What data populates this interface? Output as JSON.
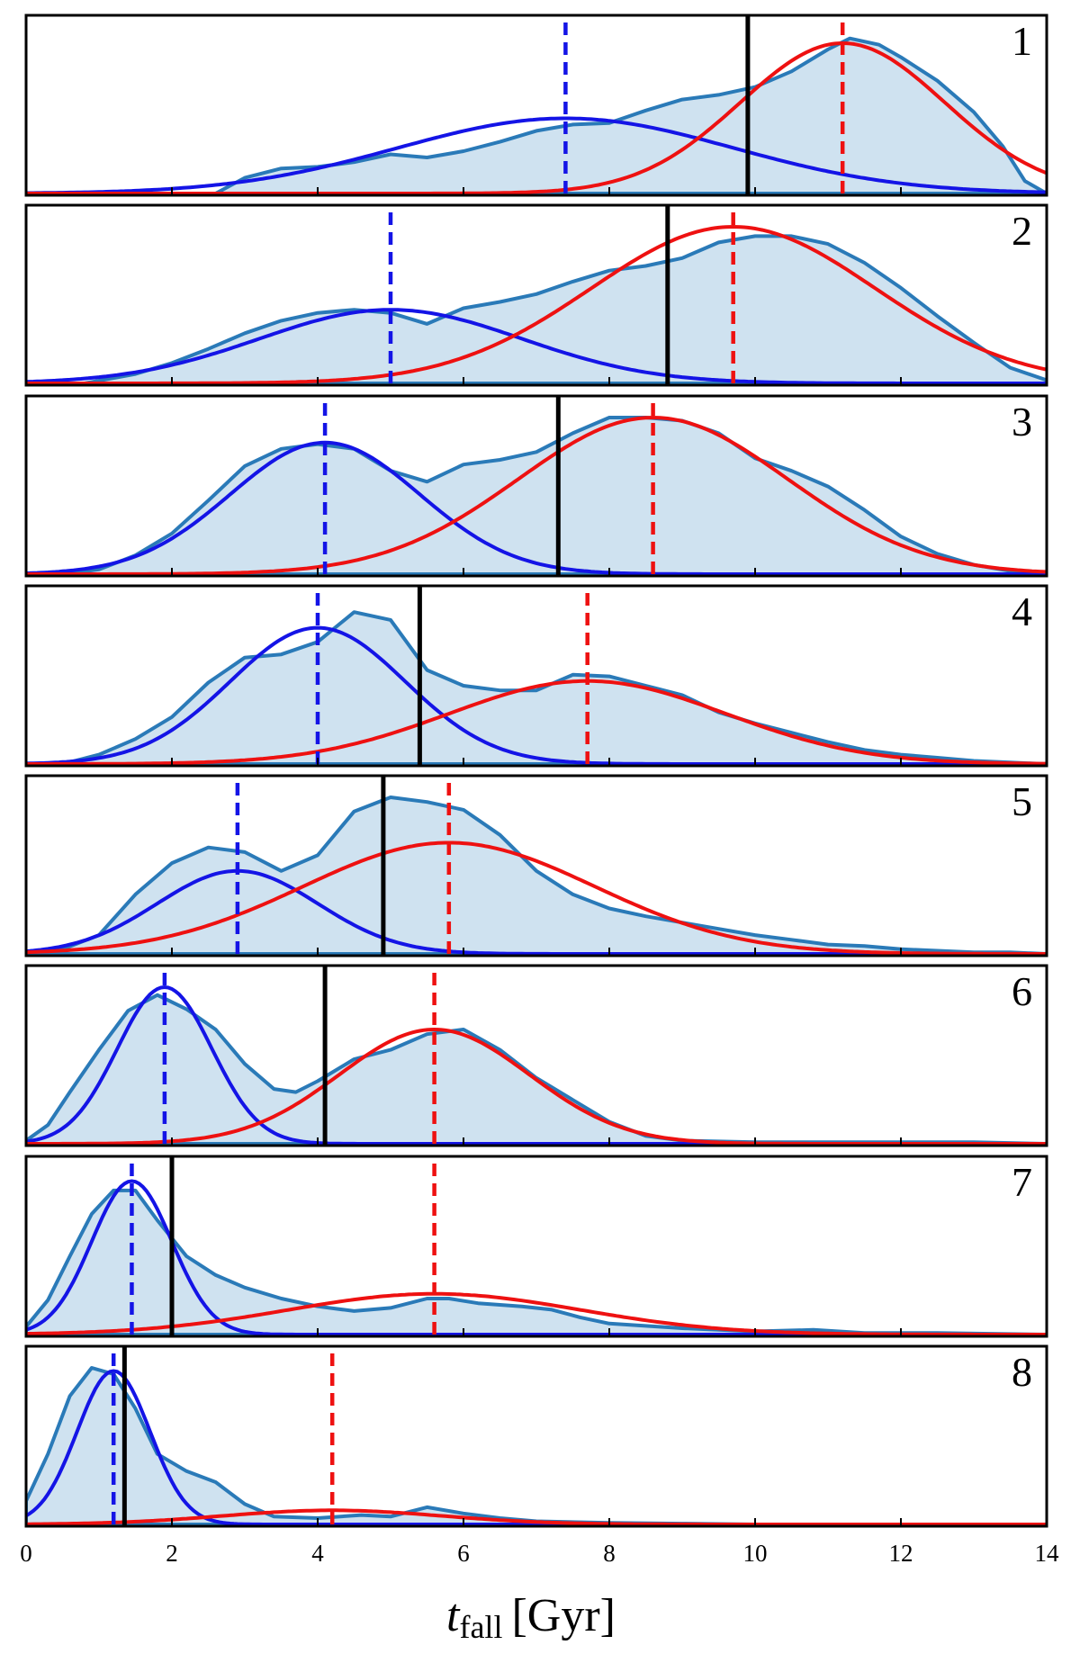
{
  "chart_data": {
    "type": "area",
    "xlabel": "t",
    "xlabel_sub": "fall",
    "xlabel_unit": "[Gyr]",
    "xlim": [
      0,
      14
    ],
    "xticks": [
      0,
      2,
      4,
      6,
      8,
      10,
      12,
      14
    ],
    "colors": {
      "kde_fill": "#cfe2f0",
      "kde_line": "#2a7ab8",
      "blue": "#1414e6",
      "red": "#ee1111",
      "black": "#000000"
    },
    "panels": [
      {
        "label": "1",
        "black_line": 9.9,
        "blue": {
          "mu": 7.4,
          "sigma": 2.3,
          "amp": 0.48
        },
        "red": {
          "mu": 11.2,
          "sigma": 1.4,
          "amp": 0.96
        },
        "kde": [
          [
            2.6,
            0
          ],
          [
            3.0,
            0.1
          ],
          [
            3.5,
            0.16
          ],
          [
            4.0,
            0.17
          ],
          [
            4.5,
            0.2
          ],
          [
            5.0,
            0.25
          ],
          [
            5.5,
            0.23
          ],
          [
            6.0,
            0.27
          ],
          [
            6.5,
            0.33
          ],
          [
            7.0,
            0.4
          ],
          [
            7.5,
            0.44
          ],
          [
            8.0,
            0.45
          ],
          [
            8.5,
            0.53
          ],
          [
            9.0,
            0.6
          ],
          [
            9.5,
            0.63
          ],
          [
            10.0,
            0.68
          ],
          [
            10.5,
            0.78
          ],
          [
            11.0,
            0.92
          ],
          [
            11.3,
            0.99
          ],
          [
            11.7,
            0.95
          ],
          [
            12.0,
            0.87
          ],
          [
            12.5,
            0.72
          ],
          [
            13.0,
            0.52
          ],
          [
            13.4,
            0.3
          ],
          [
            13.7,
            0.08
          ],
          [
            14,
            0
          ]
        ]
      },
      {
        "label": "2",
        "black_line": 8.8,
        "blue": {
          "mu": 5.0,
          "sigma": 1.8,
          "amp": 0.47
        },
        "red": {
          "mu": 9.7,
          "sigma": 1.95,
          "amp": 1.0
        },
        "kde": [
          [
            0.8,
            0
          ],
          [
            1.5,
            0.06
          ],
          [
            2.0,
            0.13
          ],
          [
            2.5,
            0.22
          ],
          [
            3.0,
            0.32
          ],
          [
            3.5,
            0.4
          ],
          [
            4.0,
            0.45
          ],
          [
            4.5,
            0.47
          ],
          [
            5.0,
            0.45
          ],
          [
            5.5,
            0.38
          ],
          [
            6.0,
            0.48
          ],
          [
            6.5,
            0.52
          ],
          [
            7.0,
            0.57
          ],
          [
            7.5,
            0.65
          ],
          [
            8.0,
            0.72
          ],
          [
            8.5,
            0.75
          ],
          [
            9.0,
            0.8
          ],
          [
            9.5,
            0.9
          ],
          [
            10.0,
            0.94
          ],
          [
            10.5,
            0.94
          ],
          [
            11.0,
            0.89
          ],
          [
            11.5,
            0.77
          ],
          [
            12.0,
            0.61
          ],
          [
            12.5,
            0.43
          ],
          [
            13.0,
            0.26
          ],
          [
            13.5,
            0.1
          ],
          [
            14.0,
            0.02
          ]
        ]
      },
      {
        "label": "3",
        "black_line": 7.3,
        "blue": {
          "mu": 4.1,
          "sigma": 1.3,
          "amp": 0.84
        },
        "red": {
          "mu": 8.6,
          "sigma": 1.85,
          "amp": 1.0
        },
        "kde": [
          [
            0.5,
            0
          ],
          [
            1.0,
            0.03
          ],
          [
            1.5,
            0.12
          ],
          [
            2.0,
            0.26
          ],
          [
            2.5,
            0.47
          ],
          [
            3.0,
            0.69
          ],
          [
            3.5,
            0.8
          ],
          [
            4.0,
            0.83
          ],
          [
            4.5,
            0.8
          ],
          [
            5.0,
            0.66
          ],
          [
            5.5,
            0.59
          ],
          [
            6.0,
            0.7
          ],
          [
            6.5,
            0.73
          ],
          [
            7.0,
            0.78
          ],
          [
            7.5,
            0.9
          ],
          [
            8.0,
            1.0
          ],
          [
            8.5,
            1.0
          ],
          [
            9.0,
            0.98
          ],
          [
            9.5,
            0.9
          ],
          [
            10.0,
            0.74
          ],
          [
            10.5,
            0.66
          ],
          [
            11.0,
            0.56
          ],
          [
            11.5,
            0.41
          ],
          [
            12.0,
            0.24
          ],
          [
            12.5,
            0.13
          ],
          [
            13.0,
            0.06
          ],
          [
            13.5,
            0.02
          ],
          [
            14.0,
            0
          ]
        ]
      },
      {
        "label": "4",
        "black_line": 5.4,
        "blue": {
          "mu": 4.0,
          "sigma": 1.2,
          "amp": 0.87
        },
        "red": {
          "mu": 7.7,
          "sigma": 1.9,
          "amp": 0.53
        },
        "kde": [
          [
            0.5,
            0
          ],
          [
            1.0,
            0.06
          ],
          [
            1.5,
            0.16
          ],
          [
            2.0,
            0.3
          ],
          [
            2.5,
            0.52
          ],
          [
            3.0,
            0.68
          ],
          [
            3.5,
            0.7
          ],
          [
            4.0,
            0.78
          ],
          [
            4.5,
            0.97
          ],
          [
            5.0,
            0.92
          ],
          [
            5.5,
            0.6
          ],
          [
            6.0,
            0.5
          ],
          [
            6.5,
            0.47
          ],
          [
            7.0,
            0.47
          ],
          [
            7.5,
            0.57
          ],
          [
            8.0,
            0.56
          ],
          [
            8.5,
            0.5
          ],
          [
            9.0,
            0.44
          ],
          [
            9.5,
            0.33
          ],
          [
            10.0,
            0.26
          ],
          [
            10.5,
            0.2
          ],
          [
            11.0,
            0.14
          ],
          [
            11.5,
            0.09
          ],
          [
            12.0,
            0.06
          ],
          [
            12.5,
            0.04
          ],
          [
            13.0,
            0.02
          ],
          [
            13.5,
            0.01
          ],
          [
            14.0,
            0
          ]
        ]
      },
      {
        "label": "5",
        "black_line": 4.9,
        "blue": {
          "mu": 2.9,
          "sigma": 1.1,
          "amp": 0.53
        },
        "red": {
          "mu": 5.8,
          "sigma": 2.0,
          "amp": 0.71
        },
        "kde": [
          [
            0.0,
            0
          ],
          [
            0.5,
            0.03
          ],
          [
            1.0,
            0.12
          ],
          [
            1.5,
            0.38
          ],
          [
            2.0,
            0.58
          ],
          [
            2.5,
            0.68
          ],
          [
            3.0,
            0.65
          ],
          [
            3.5,
            0.53
          ],
          [
            4.0,
            0.63
          ],
          [
            4.5,
            0.91
          ],
          [
            5.0,
            1.0
          ],
          [
            5.5,
            0.97
          ],
          [
            6.0,
            0.92
          ],
          [
            6.5,
            0.76
          ],
          [
            7.0,
            0.53
          ],
          [
            7.5,
            0.38
          ],
          [
            8.0,
            0.29
          ],
          [
            8.5,
            0.24
          ],
          [
            9.0,
            0.2
          ],
          [
            9.5,
            0.16
          ],
          [
            10.0,
            0.12
          ],
          [
            10.5,
            0.09
          ],
          [
            11.0,
            0.06
          ],
          [
            11.5,
            0.05
          ],
          [
            12.0,
            0.03
          ],
          [
            12.5,
            0.02
          ],
          [
            13.0,
            0.01
          ],
          [
            13.5,
            0.01
          ],
          [
            14.0,
            0
          ]
        ]
      },
      {
        "label": "6",
        "black_line": 4.1,
        "blue": {
          "mu": 1.9,
          "sigma": 0.65,
          "amp": 1.0
        },
        "red": {
          "mu": 5.6,
          "sigma": 1.3,
          "amp": 0.73
        },
        "kde": [
          [
            0.0,
            0.02
          ],
          [
            0.3,
            0.12
          ],
          [
            0.6,
            0.33
          ],
          [
            1.0,
            0.6
          ],
          [
            1.4,
            0.85
          ],
          [
            1.8,
            0.95
          ],
          [
            2.2,
            0.86
          ],
          [
            2.6,
            0.73
          ],
          [
            3.0,
            0.51
          ],
          [
            3.4,
            0.35
          ],
          [
            3.7,
            0.33
          ],
          [
            4.0,
            0.4
          ],
          [
            4.5,
            0.54
          ],
          [
            5.0,
            0.6
          ],
          [
            5.5,
            0.7
          ],
          [
            6.0,
            0.73
          ],
          [
            6.5,
            0.6
          ],
          [
            7.0,
            0.42
          ],
          [
            7.5,
            0.28
          ],
          [
            8.0,
            0.14
          ],
          [
            8.5,
            0.05
          ],
          [
            9.0,
            0.02
          ],
          [
            10.0,
            0.01
          ],
          [
            11.0,
            0.01
          ],
          [
            12.0,
            0.01
          ],
          [
            13.0,
            0.01
          ],
          [
            14.0,
            0
          ]
        ]
      },
      {
        "label": "7",
        "black_line": 2.0,
        "blue": {
          "mu": 1.45,
          "sigma": 0.55,
          "amp": 0.98
        },
        "red": {
          "mu": 5.6,
          "sigma": 2.0,
          "amp": 0.26
        },
        "kde": [
          [
            0.0,
            0.05
          ],
          [
            0.3,
            0.22
          ],
          [
            0.6,
            0.5
          ],
          [
            0.9,
            0.77
          ],
          [
            1.2,
            0.92
          ],
          [
            1.5,
            0.92
          ],
          [
            1.8,
            0.73
          ],
          [
            2.2,
            0.5
          ],
          [
            2.6,
            0.38
          ],
          [
            3.0,
            0.3
          ],
          [
            3.5,
            0.23
          ],
          [
            4.0,
            0.18
          ],
          [
            4.5,
            0.15
          ],
          [
            5.0,
            0.17
          ],
          [
            5.5,
            0.23
          ],
          [
            5.8,
            0.23
          ],
          [
            6.2,
            0.2
          ],
          [
            6.8,
            0.18
          ],
          [
            7.2,
            0.16
          ],
          [
            7.6,
            0.11
          ],
          [
            8.0,
            0.07
          ],
          [
            9.0,
            0.04
          ],
          [
            10.0,
            0.02
          ],
          [
            10.8,
            0.03
          ],
          [
            11.5,
            0.01
          ],
          [
            12.5,
            0.01
          ],
          [
            14.0,
            0
          ]
        ]
      },
      {
        "label": "8",
        "black_line": 1.35,
        "blue": {
          "mu": 1.2,
          "sigma": 0.5,
          "amp": 0.98
        },
        "red": {
          "mu": 4.2,
          "sigma": 1.5,
          "amp": 0.09
        },
        "kde": [
          [
            0.0,
            0.15
          ],
          [
            0.3,
            0.45
          ],
          [
            0.6,
            0.82
          ],
          [
            0.9,
            1.0
          ],
          [
            1.2,
            0.96
          ],
          [
            1.5,
            0.74
          ],
          [
            1.8,
            0.45
          ],
          [
            2.2,
            0.34
          ],
          [
            2.6,
            0.27
          ],
          [
            3.0,
            0.13
          ],
          [
            3.4,
            0.05
          ],
          [
            4.0,
            0.04
          ],
          [
            4.6,
            0.06
          ],
          [
            5.0,
            0.05
          ],
          [
            5.5,
            0.11
          ],
          [
            6.0,
            0.07
          ],
          [
            6.5,
            0.04
          ],
          [
            7.0,
            0.02
          ],
          [
            8.0,
            0.01
          ],
          [
            9.0,
            0.005
          ],
          [
            10.0,
            0
          ],
          [
            14.0,
            0
          ]
        ]
      }
    ]
  }
}
